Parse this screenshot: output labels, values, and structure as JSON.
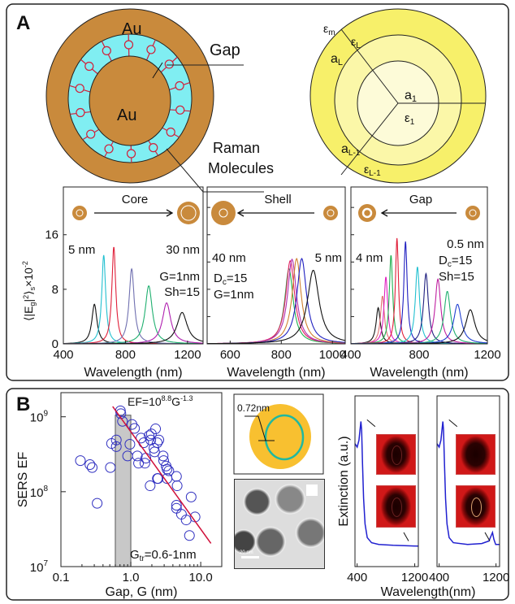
{
  "panel_labels": {
    "a": "A",
    "b": "B"
  },
  "diagram_left": {
    "outer_label": "Au",
    "core_label": "Au",
    "gap_label": "Gap",
    "molecules_label_1": "Raman",
    "molecules_label_2": "Molecules",
    "colors": {
      "gold": "#c98a3c",
      "gap": "#80eef2",
      "molecule": "#d0203a"
    }
  },
  "diagram_right": {
    "eps_m": "ε",
    "eps_m_sub": "m",
    "eps_L": "ε",
    "eps_L_sub": "L",
    "a_L": "a",
    "a_L_sub": "L",
    "a_1": "a",
    "a_1_sub": "1",
    "eps_1": "ε",
    "eps_1_sub": "1",
    "a_L1": "a",
    "a_L1_sub": "L-1",
    "eps_L1": "ε",
    "eps_L1_sub": "L-1",
    "colors": {
      "outer": "#f7f06a",
      "middle": "#fbf7a8",
      "inner": "#fdfbd8"
    }
  },
  "ylabel_parts": {
    "open": "⟨|E",
    "g": "g",
    "abs": "|",
    "sq": "2",
    "close": "⟩",
    "s": "s",
    "times": "×10",
    "exp": "-2"
  },
  "chart_data": [
    {
      "type": "line",
      "title": "Core",
      "xlabel": "Wavelength (nm)",
      "xlim": [
        400,
        1300
      ],
      "ylim": [
        0,
        23
      ],
      "xticks": [
        400,
        800,
        1200
      ],
      "yticks": [
        0,
        8,
        16
      ],
      "annotations": {
        "left": "5 nm",
        "right": "30 nm",
        "p1": "G=1nm",
        "p2": "Sh=15"
      },
      "series": [
        {
          "peak": 600,
          "height": 5.8,
          "fwhm": 40,
          "color": "#111111"
        },
        {
          "peak": 660,
          "height": 13,
          "fwhm": 30,
          "color": "#22c0d0"
        },
        {
          "peak": 725,
          "height": 14.2,
          "fwhm": 30,
          "color": "#e0203a"
        },
        {
          "peak": 840,
          "height": 11,
          "fwhm": 40,
          "color": "#7070b0"
        },
        {
          "peak": 950,
          "height": 8.5,
          "fwhm": 55,
          "color": "#20b070"
        },
        {
          "peak": 1065,
          "height": 6,
          "fwhm": 65,
          "color": "#b020b0"
        },
        {
          "peak": 1165,
          "height": 4.6,
          "fwhm": 80,
          "color": "#111111"
        }
      ]
    },
    {
      "type": "line",
      "title": "Shell",
      "xlabel": "Wavelength (nm)",
      "xlim": [
        510,
        1050
      ],
      "ylim": [
        0,
        23
      ],
      "xticks": [
        600,
        800,
        1000
      ],
      "yticks": [
        0,
        4,
        8,
        12,
        16,
        20
      ],
      "annotations": {
        "left": "40 nm",
        "right": "5 nm",
        "p1_a": "D",
        "p1_sub": "c",
        "p1_b": "=15",
        "p2": "G=1nm"
      },
      "series": [
        {
          "peak": 830,
          "height": 11,
          "fwhm": 40,
          "color": "#20b050"
        },
        {
          "peak": 835,
          "height": 12.2,
          "fwhm": 42,
          "color": "#e02060"
        },
        {
          "peak": 842,
          "height": 12.4,
          "fwhm": 42,
          "color": "#b030b0"
        },
        {
          "peak": 860,
          "height": 12.5,
          "fwhm": 42,
          "color": "#d08030"
        },
        {
          "peak": 880,
          "height": 12.5,
          "fwhm": 45,
          "color": "#2020c0"
        },
        {
          "peak": 925,
          "height": 10.8,
          "fwhm": 55,
          "color": "#111111"
        }
      ]
    },
    {
      "type": "line",
      "title": "Gap",
      "xlabel": "Wavelength (nm)",
      "xlim": [
        400,
        1200
      ],
      "ylim": [
        0,
        23
      ],
      "xticks": [
        400,
        800,
        1200
      ],
      "yticks": [
        0,
        4,
        8,
        12,
        16,
        20
      ],
      "annotations": {
        "left": "4 nm",
        "right": "0.5 nm",
        "p1_a": "D",
        "p1_sub": "c",
        "p1_b": "=15",
        "p2": "Sh=15"
      },
      "series": [
        {
          "peak": 560,
          "height": 5.3,
          "fwhm": 30,
          "color": "#111111"
        },
        {
          "peak": 585,
          "height": 7,
          "fwhm": 28,
          "color": "#e07070"
        },
        {
          "peak": 605,
          "height": 9.8,
          "fwhm": 26,
          "color": "#e020c0"
        },
        {
          "peak": 635,
          "height": 13,
          "fwhm": 24,
          "color": "#20b050"
        },
        {
          "peak": 670,
          "height": 15.5,
          "fwhm": 22,
          "color": "#e0203a"
        },
        {
          "peak": 720,
          "height": 15,
          "fwhm": 24,
          "color": "#2020c0"
        },
        {
          "peak": 790,
          "height": 11.3,
          "fwhm": 30,
          "color": "#22c0d0"
        },
        {
          "peak": 840,
          "height": 10.3,
          "fwhm": 34,
          "color": "#202080"
        },
        {
          "peak": 910,
          "height": 9.5,
          "fwhm": 40,
          "color": "#c020a0"
        },
        {
          "peak": 965,
          "height": 7.7,
          "fwhm": 45,
          "color": "#20b070"
        },
        {
          "peak": 1025,
          "height": 5.8,
          "fwhm": 55,
          "color": "#2040d0"
        },
        {
          "peak": 1100,
          "height": 5,
          "fwhm": 65,
          "color": "#111111"
        }
      ]
    },
    {
      "type": "scatter",
      "xlabel": "Gap, G (nm)",
      "ylabel": "SERS EF",
      "xscale": "log",
      "yscale": "log",
      "xlim": [
        0.1,
        20
      ],
      "ylim": [
        10000000.0,
        2100000000.0
      ],
      "xticks": [
        {
          "v": 0.1,
          "label": "0.1"
        },
        {
          "v": 1,
          "label": "1.0"
        },
        {
          "v": 10,
          "label": "10.0"
        }
      ],
      "yticks": [
        {
          "v": 10000000.0,
          "base": "10",
          "exp": "7"
        },
        {
          "v": 100000000.0,
          "base": "10",
          "exp": "8"
        },
        {
          "v": 1000000000.0,
          "base": "10",
          "exp": "9"
        }
      ],
      "fit": {
        "label_a": "EF=10",
        "label_exp1": "8.8",
        "label_b": "G",
        "label_exp2": "-1.3",
        "log_prefactor": 8.8,
        "exponent": -1.3,
        "range": [
          0.55,
          14
        ],
        "color": "#d0103a"
      },
      "band": {
        "range": [
          0.6,
          1.0
        ],
        "top": 1050000000.0,
        "label_a": "G",
        "label_sub": "tr",
        "label_b": "=0.6-1nm",
        "color": "#c8c8c8"
      },
      "marker_color": "#3030c0",
      "points": [
        [
          0.19,
          260000000.0
        ],
        [
          0.26,
          230000000.0
        ],
        [
          0.28,
          210000000.0
        ],
        [
          0.33,
          70000000.0
        ],
        [
          0.51,
          210000000.0
        ],
        [
          0.53,
          440000000.0
        ],
        [
          0.62,
          490000000.0
        ],
        [
          0.62,
          400000000.0
        ],
        [
          0.71,
          1200000000.0
        ],
        [
          0.72,
          1100000000.0
        ],
        [
          0.76,
          870000000.0
        ],
        [
          0.9,
          300000000.0
        ],
        [
          0.97,
          430000000.0
        ],
        [
          1.04,
          790000000.0
        ],
        [
          1.13,
          700000000.0
        ],
        [
          1.24,
          300000000.0
        ],
        [
          1.29,
          240000000.0
        ],
        [
          1.4,
          520000000.0
        ],
        [
          1.53,
          450000000.0
        ],
        [
          1.59,
          240000000.0
        ],
        [
          1.64,
          280000000.0
        ],
        [
          1.83,
          560000000.0
        ],
        [
          1.89,
          120000000.0
        ],
        [
          1.93,
          490000000.0
        ],
        [
          1.97,
          590000000.0
        ],
        [
          2.14,
          380000000.0
        ],
        [
          2.19,
          340000000.0
        ],
        [
          2.26,
          690000000.0
        ],
        [
          2.39,
          450000000.0
        ],
        [
          2.4,
          150000000.0
        ],
        [
          2.45,
          150000000.0
        ],
        [
          2.52,
          490000000.0
        ],
        [
          2.9,
          300000000.0
        ],
        [
          2.95,
          260000000.0
        ],
        [
          3.2,
          220000000.0
        ],
        [
          3.3,
          200000000.0
        ],
        [
          3.5,
          190000000.0
        ],
        [
          3.3,
          150000000.0
        ],
        [
          4.5,
          160000000.0
        ],
        [
          4.6,
          120000000.0
        ],
        [
          4.5,
          66000000.0
        ],
        [
          4.5,
          60000000.0
        ],
        [
          5.3,
          50000000.0
        ],
        [
          6.2,
          42000000.0
        ],
        [
          7.3,
          85000000.0
        ],
        [
          6.9,
          26000000.0
        ],
        [
          8.3,
          46000000.0
        ]
      ]
    },
    {
      "type": "line",
      "ylabel": "Extinction (a.u.)",
      "xlabel": "Wavelength(nm)",
      "xlim": [
        370,
        1250
      ],
      "ylim": [
        0,
        1
      ],
      "xticks": [
        400,
        1200
      ],
      "color": "#2020d0",
      "series": [
        {
          "points": [
            [
              370,
              0.72
            ],
            [
              400,
              0.7
            ],
            [
              425,
              0.74
            ],
            [
              440,
              0.8
            ],
            [
              452,
              0.85
            ],
            [
              462,
              0.8
            ],
            [
              475,
              0.6
            ],
            [
              490,
              0.4
            ],
            [
              510,
              0.25
            ],
            [
              540,
              0.17
            ],
            [
              600,
              0.14
            ],
            [
              700,
              0.13
            ],
            [
              900,
              0.125
            ],
            [
              1250,
              0.12
            ]
          ]
        }
      ]
    },
    {
      "type": "line",
      "xlim": [
        370,
        1250
      ],
      "ylim": [
        0,
        1
      ],
      "xticks": [
        400,
        1200
      ],
      "color": "#2020d0",
      "series": [
        {
          "points": [
            [
              370,
              0.72
            ],
            [
              400,
              0.7
            ],
            [
              425,
              0.74
            ],
            [
              440,
              0.8
            ],
            [
              452,
              0.85
            ],
            [
              462,
              0.8
            ],
            [
              475,
              0.6
            ],
            [
              490,
              0.4
            ],
            [
              510,
              0.25
            ],
            [
              540,
              0.17
            ],
            [
              600,
              0.14
            ],
            [
              800,
              0.13
            ],
            [
              1000,
              0.135
            ],
            [
              1100,
              0.15
            ],
            [
              1150,
              0.2
            ],
            [
              1170,
              0.16
            ],
            [
              1195,
              0.13
            ],
            [
              1250,
              0.13
            ]
          ]
        }
      ]
    }
  ],
  "schematic": {
    "gap_label": "0.72nm",
    "colors": {
      "shell": "#f8c030",
      "ring": "#20b8a0"
    }
  },
  "tem": {
    "scale_label": "20 nm"
  }
}
